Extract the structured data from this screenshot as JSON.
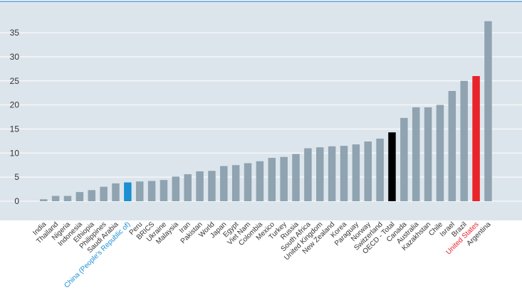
{
  "chart_data": {
    "type": "bar",
    "title": "",
    "xlabel": "",
    "ylabel": "",
    "ylim": [
      -4,
      40
    ],
    "yticks": [
      0,
      5,
      10,
      15,
      20,
      25,
      30,
      35
    ],
    "grid": true,
    "legend": "none",
    "categories": [
      "India",
      "Thailand",
      "Nigeria",
      "Indonesia",
      "Ethiopia",
      "Philippines",
      "Saudi Arabia",
      "China (People's Republic of)",
      "Peru",
      "BRICS",
      "Ukraine",
      "Malaysia",
      "Iran",
      "Pakistan",
      "World",
      "Japan",
      "Egypt",
      "Viet Nam",
      "Colombia",
      "Mexico",
      "Turkey",
      "Russia",
      "South Africa",
      "United Kingdom",
      "New Zealand",
      "Korea",
      "Paraguay",
      "Norway",
      "Switzerland",
      "OECD - Total",
      "Canada",
      "Australia",
      "Kazakhstan",
      "Chile",
      "Israel",
      "Brazil",
      "United States",
      "Argentina"
    ],
    "values": [
      0.4,
      1.1,
      1.1,
      1.9,
      2.3,
      3.0,
      3.7,
      3.9,
      4.1,
      4.2,
      4.4,
      5.1,
      5.6,
      6.2,
      6.3,
      7.3,
      7.5,
      7.9,
      8.3,
      9.0,
      9.2,
      9.8,
      11.0,
      11.2,
      11.4,
      11.5,
      11.8,
      12.4,
      13.0,
      14.3,
      17.3,
      19.5,
      19.5,
      20.0,
      22.9,
      25.0,
      26.0,
      37.4
    ],
    "colors": {
      "background": "#dde5ec",
      "grid": "#ffffff",
      "default_bar": "#8fa3b1",
      "china": "#1a8fd1",
      "oecd_total": "#000000",
      "united_states": "#e8232a",
      "axis_label": "#333333",
      "top_rule": "#5b9bd5"
    },
    "highlights": {
      "China (People's Republic of)": "china",
      "OECD - Total": "oecd_total",
      "United States": "united_states"
    }
  }
}
